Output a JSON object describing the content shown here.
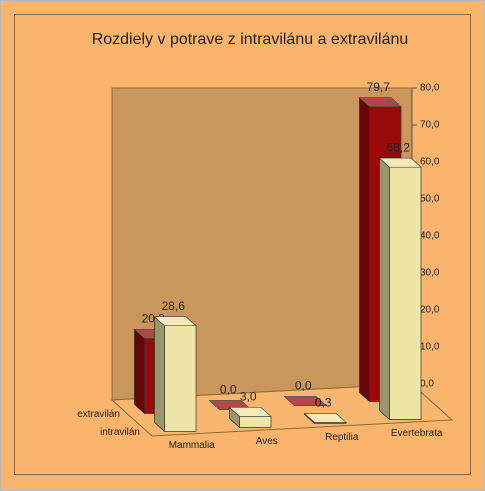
{
  "chart_data": {
    "type": "bar3d",
    "title": "Rozdiely v potrave z intravilánu a extravilánu",
    "categories": [
      "Mammalia",
      "Aves",
      "Reptilia",
      "Evertebrata"
    ],
    "series": [
      {
        "name": "extravilán",
        "color": "#9a0a0a",
        "values": [
          20.3,
          0.0,
          0.0,
          79.7
        ],
        "value_labels": [
          "20,3",
          "0,0",
          "0,0",
          "79,7"
        ]
      },
      {
        "name": "intravilán",
        "color": "#efe5a6",
        "values": [
          28.6,
          3.0,
          0.3,
          68.2
        ],
        "value_labels": [
          "28,6",
          "3,0",
          "0,3",
          "68,2"
        ]
      }
    ],
    "ylim": [
      0,
      80
    ],
    "yticks": [
      {
        "value": 0,
        "label": "0,0"
      },
      {
        "value": 10,
        "label": "10,0"
      },
      {
        "value": 20,
        "label": "20,0"
      },
      {
        "value": 30,
        "label": "30,0"
      },
      {
        "value": 40,
        "label": "40,0"
      },
      {
        "value": 50,
        "label": "50,0"
      },
      {
        "value": 60,
        "label": "60,0"
      },
      {
        "value": 70,
        "label": "70,0"
      },
      {
        "value": 80,
        "label": "80,0"
      }
    ]
  }
}
